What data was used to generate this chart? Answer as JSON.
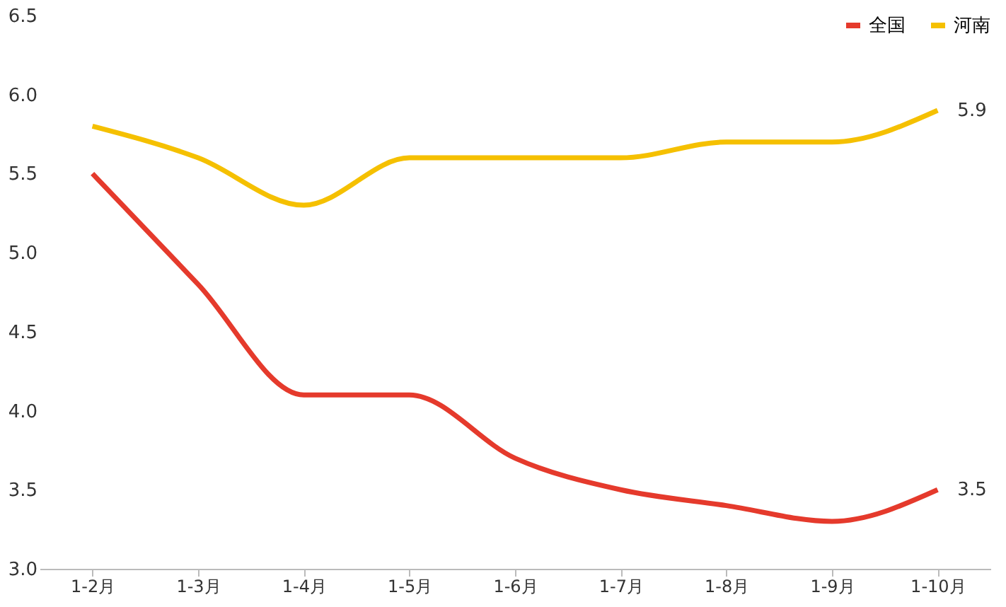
{
  "chart_data": {
    "type": "line",
    "categories": [
      "1-2月",
      "1-3月",
      "1-4月",
      "1-5月",
      "1-6月",
      "1-7月",
      "1-8月",
      "1-9月",
      "1-10月"
    ],
    "series": [
      {
        "name": "全国",
        "color": "#e53a2c",
        "values": [
          5.5,
          4.8,
          4.1,
          4.1,
          3.7,
          3.5,
          3.4,
          3.3,
          3.5
        ],
        "value_labels": [
          null,
          null,
          null,
          null,
          null,
          null,
          null,
          null,
          "3.5"
        ]
      },
      {
        "name": "河南",
        "color": "#f5c000",
        "values": [
          5.8,
          5.6,
          5.3,
          5.6,
          5.6,
          5.6,
          5.7,
          5.7,
          5.9
        ],
        "value_labels": [
          null,
          null,
          null,
          null,
          null,
          null,
          null,
          null,
          "5.9"
        ]
      }
    ],
    "ylim": [
      3.0,
      6.5
    ],
    "yticks": [
      {
        "value": 3.0,
        "label": "3.0"
      },
      {
        "value": 3.5,
        "label": "3.5"
      },
      {
        "value": 4.0,
        "label": "4.0"
      },
      {
        "value": 4.5,
        "label": "4.5"
      },
      {
        "value": 5.0,
        "label": "5.0"
      },
      {
        "value": 5.5,
        "label": "5.5"
      },
      {
        "value": 6.0,
        "label": "6.0"
      },
      {
        "value": 6.5,
        "label": "6.5"
      }
    ],
    "grid": false,
    "legend": "top right",
    "marker": "none",
    "line_style": "solid"
  }
}
